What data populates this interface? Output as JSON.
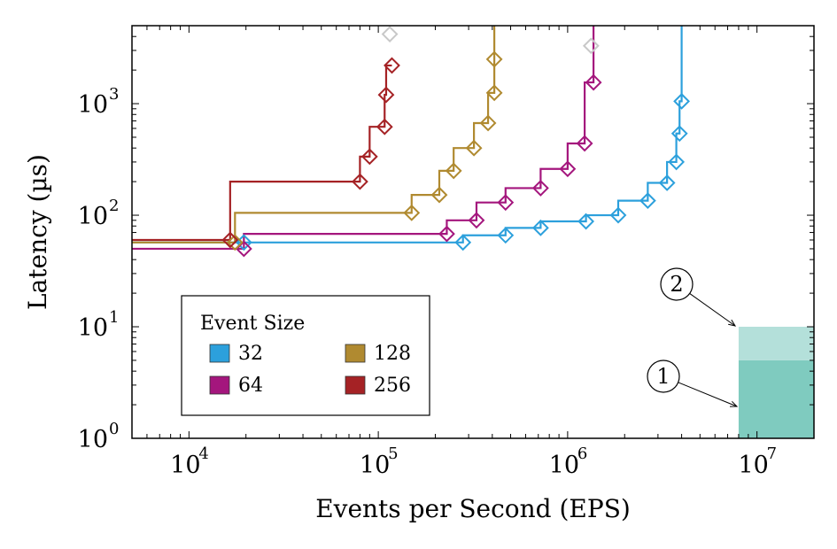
{
  "chart_data": {
    "type": "line",
    "xlabel": "Events per Second (EPS)",
    "ylabel": "Latency (µs)",
    "xscale": "log",
    "yscale": "log",
    "xlim": [
      5000,
      20000000
    ],
    "ylim": [
      1,
      5000
    ],
    "x_ticks": [
      {
        "base": "10",
        "exp": "4",
        "value": 10000
      },
      {
        "base": "10",
        "exp": "5",
        "value": 100000
      },
      {
        "base": "10",
        "exp": "6",
        "value": 1000000
      },
      {
        "base": "10",
        "exp": "7",
        "value": 10000000
      }
    ],
    "y_ticks": [
      {
        "base": "10",
        "exp": "0",
        "value": 1
      },
      {
        "base": "10",
        "exp": "1",
        "value": 10
      },
      {
        "base": "10",
        "exp": "2",
        "value": 100
      },
      {
        "base": "10",
        "exp": "3",
        "value": 1000
      }
    ],
    "grid": false,
    "legend": {
      "title": "Event Size",
      "placement": "lower-left",
      "entries": [
        "32",
        "128",
        "64",
        "256"
      ]
    },
    "series": [
      {
        "name": "32",
        "color": "#2ca0dc",
        "points": [
          [
            19500,
            57
          ],
          [
            280000,
            57
          ],
          [
            470000,
            66
          ],
          [
            720000,
            77
          ],
          [
            1250000,
            88
          ],
          [
            1850000,
            100
          ],
          [
            2650000,
            135
          ],
          [
            3350000,
            195
          ],
          [
            3750000,
            300
          ],
          [
            3900000,
            540
          ],
          [
            4000000,
            1050
          ]
        ],
        "vertical_to_top": true
      },
      {
        "name": "64",
        "color": "#a4167d",
        "points": [
          [
            19500,
            50
          ],
          [
            230000,
            68
          ],
          [
            330000,
            90
          ],
          [
            470000,
            130
          ],
          [
            720000,
            175
          ],
          [
            1000000,
            260
          ],
          [
            1230000,
            440
          ],
          [
            1370000,
            1550
          ]
        ],
        "vertical_to_top": true
      },
      {
        "name": "128",
        "color": "#b08a30",
        "points": [
          [
            17500,
            57
          ],
          [
            150000,
            105
          ],
          [
            210000,
            152
          ],
          [
            250000,
            250
          ],
          [
            320000,
            400
          ],
          [
            380000,
            670
          ],
          [
            410000,
            1250
          ],
          [
            410000,
            2500
          ]
        ],
        "vertical_to_top": true
      },
      {
        "name": "256",
        "color": "#a52225",
        "points": [
          [
            16500,
            60
          ],
          [
            80000,
            200
          ],
          [
            90000,
            335
          ],
          [
            108000,
            620
          ],
          [
            110000,
            1200
          ],
          [
            118000,
            2200
          ]
        ],
        "vertical_to_top": false
      }
    ],
    "faded_markers": [
      [
        115000,
        4200
      ],
      [
        1330000,
        3300
      ]
    ],
    "annotations": [
      {
        "label": "1",
        "region": {
          "x": [
            8000000,
            20000000
          ],
          "y": [
            1,
            5
          ]
        },
        "color": "#7fcbbf"
      },
      {
        "label": "2",
        "region": {
          "x": [
            8000000,
            20000000
          ],
          "y": [
            5,
            10
          ]
        },
        "color": "#b4e0da"
      }
    ]
  }
}
